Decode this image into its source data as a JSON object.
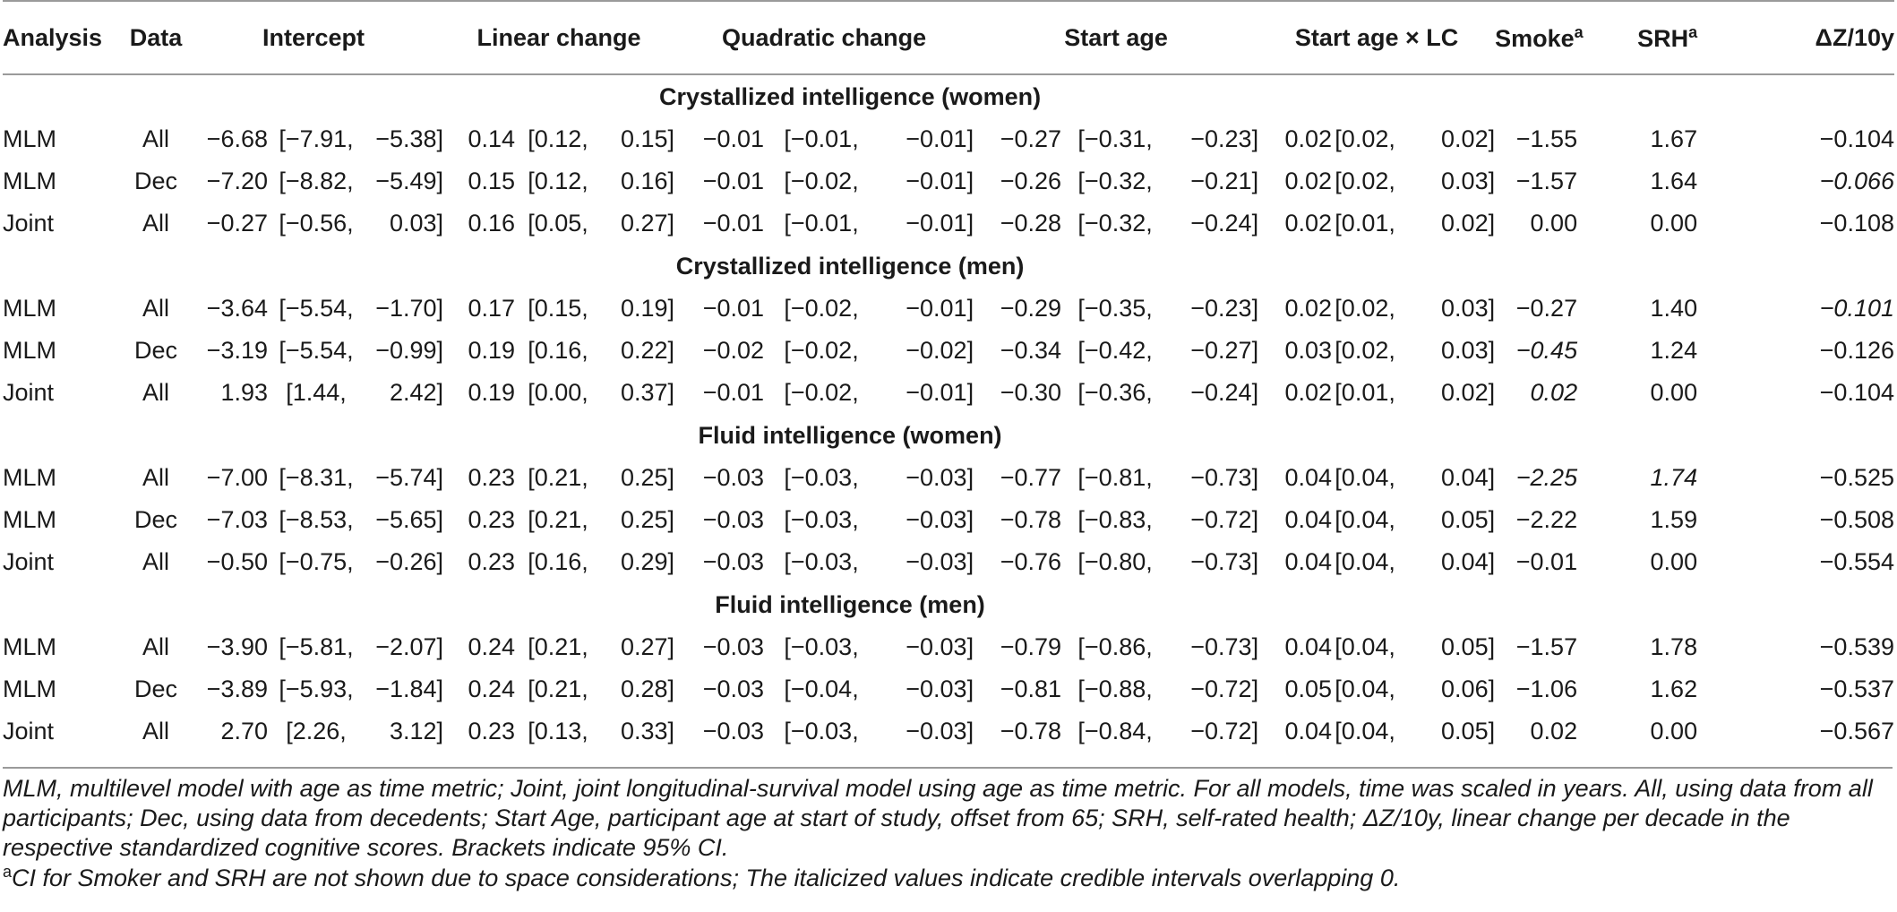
{
  "headers": {
    "analysis": "Analysis",
    "data": "Data",
    "intercept": "Intercept",
    "linear": "Linear change",
    "quadratic": "Quadratic change",
    "start_age": "Start age",
    "start_age_lc": "Start age × LC",
    "smoke": "Smoke",
    "srh": "SRH",
    "sup_a": "a",
    "dz": "ΔZ/10y"
  },
  "sections": [
    {
      "title": "Crystallized intelligence (women)",
      "rows": [
        {
          "analysis": "MLM",
          "data": "All",
          "int": [
            "−6.68",
            "[−7.91,",
            "−5.38]"
          ],
          "lin": [
            "0.14",
            "[0.12,",
            "0.15]"
          ],
          "quad": [
            "−0.01",
            "[−0.01,",
            "−0.01]"
          ],
          "age": [
            "−0.27",
            "[−0.31,",
            "−0.23]"
          ],
          "agelc": [
            "0.02",
            "[0.02,",
            "0.02]"
          ],
          "smoke": "−1.55",
          "srh": "1.67",
          "dz": "−0.104"
        },
        {
          "analysis": "MLM",
          "data": "Dec",
          "int": [
            "−7.20",
            "[−8.82,",
            "−5.49]"
          ],
          "lin": [
            "0.15",
            "[0.12,",
            "0.16]"
          ],
          "quad": [
            "−0.01",
            "[−0.02,",
            "−0.01]"
          ],
          "age": [
            "−0.26",
            "[−0.32,",
            "−0.21]"
          ],
          "agelc": [
            "0.02",
            "[0.02,",
            "0.03]"
          ],
          "smoke": "−1.57",
          "srh": "1.64",
          "dz": "−0.066"
        },
        {
          "analysis": "Joint",
          "data": "All",
          "int": [
            "−0.27",
            "[−0.56,",
            "0.03]"
          ],
          "lin": [
            "0.16",
            "[0.05,",
            "0.27]"
          ],
          "quad": [
            "−0.01",
            "[−0.01,",
            "−0.01]"
          ],
          "age": [
            "−0.28",
            "[−0.32,",
            "−0.24]"
          ],
          "agelc": [
            "0.02",
            "[0.01,",
            "0.02]"
          ],
          "smoke": "0.00",
          "srh": "0.00",
          "dz": "−0.108"
        }
      ]
    },
    {
      "title": "Crystallized intelligence (men)",
      "rows": [
        {
          "analysis": "MLM",
          "data": "All",
          "int": [
            "−3.64",
            "[−5.54,",
            "−1.70]"
          ],
          "lin": [
            "0.17",
            "[0.15,",
            "0.19]"
          ],
          "quad": [
            "−0.01",
            "[−0.02,",
            "−0.01]"
          ],
          "age": [
            "−0.29",
            "[−0.35,",
            "−0.23]"
          ],
          "agelc": [
            "0.02",
            "[0.02,",
            "0.03]"
          ],
          "smoke": "−0.27",
          "srh": "1.40",
          "dz": "−0.101"
        },
        {
          "analysis": "MLM",
          "data": "Dec",
          "int": [
            "−3.19",
            "[−5.54,",
            "−0.99]"
          ],
          "lin": [
            "0.19",
            "[0.16,",
            "0.22]"
          ],
          "quad": [
            "−0.02",
            "[−0.02,",
            "−0.02]"
          ],
          "age": [
            "−0.34",
            "[−0.42,",
            "−0.27]"
          ],
          "agelc": [
            "0.03",
            "[0.02,",
            "0.03]"
          ],
          "smoke": "−0.45",
          "srh": "1.24",
          "dz": "−0.126"
        },
        {
          "analysis": "Joint",
          "data": "All",
          "int": [
            "1.93",
            "[1.44,",
            "2.42]"
          ],
          "lin": [
            "0.19",
            "[0.00,",
            "0.37]"
          ],
          "quad": [
            "−0.01",
            "[−0.02,",
            "−0.01]"
          ],
          "age": [
            "−0.30",
            "[−0.36,",
            "−0.24]"
          ],
          "agelc": [
            "0.02",
            "[0.01,",
            "0.02]"
          ],
          "smoke": "0.02",
          "srh": "0.00",
          "dz": "−0.104"
        }
      ]
    },
    {
      "title": "Fluid intelligence (women)",
      "rows": [
        {
          "analysis": "MLM",
          "data": "All",
          "int": [
            "−7.00",
            "[−8.31,",
            "−5.74]"
          ],
          "lin": [
            "0.23",
            "[0.21,",
            "0.25]"
          ],
          "quad": [
            "−0.03",
            "[−0.03,",
            "−0.03]"
          ],
          "age": [
            "−0.77",
            "[−0.81,",
            "−0.73]"
          ],
          "agelc": [
            "0.04",
            "[0.04,",
            "0.04]"
          ],
          "smoke": "−2.25",
          "srh": "1.74",
          "dz": "−0.525"
        },
        {
          "analysis": "MLM",
          "data": "Dec",
          "int": [
            "−7.03",
            "[−8.53,",
            "−5.65]"
          ],
          "lin": [
            "0.23",
            "[0.21,",
            "0.25]"
          ],
          "quad": [
            "−0.03",
            "[−0.03,",
            "−0.03]"
          ],
          "age": [
            "−0.78",
            "[−0.83,",
            "−0.72]"
          ],
          "agelc": [
            "0.04",
            "[0.04,",
            "0.05]"
          ],
          "smoke": "−2.22",
          "srh": "1.59",
          "dz": "−0.508"
        },
        {
          "analysis": "Joint",
          "data": "All",
          "int": [
            "−0.50",
            "[−0.75,",
            "−0.26]"
          ],
          "lin": [
            "0.23",
            "[0.16,",
            "0.29]"
          ],
          "quad": [
            "−0.03",
            "[−0.03,",
            "−0.03]"
          ],
          "age": [
            "−0.76",
            "[−0.80,",
            "−0.73]"
          ],
          "agelc": [
            "0.04",
            "[0.04,",
            "0.04]"
          ],
          "smoke": "−0.01",
          "srh": "0.00",
          "dz": "−0.554"
        }
      ]
    },
    {
      "title": "Fluid intelligence (men)",
      "rows": [
        {
          "analysis": "MLM",
          "data": "All",
          "int": [
            "−3.90",
            "[−5.81,",
            "−2.07]"
          ],
          "lin": [
            "0.24",
            "[0.21,",
            "0.27]"
          ],
          "quad": [
            "−0.03",
            "[−0.03,",
            "−0.03]"
          ],
          "age": [
            "−0.79",
            "[−0.86,",
            "−0.73]"
          ],
          "agelc": [
            "0.04",
            "[0.04,",
            "0.05]"
          ],
          "smoke": "−1.57",
          "srh": "1.78",
          "dz": "−0.539"
        },
        {
          "analysis": "MLM",
          "data": "Dec",
          "int": [
            "−3.89",
            "[−5.93,",
            "−1.84]"
          ],
          "lin": [
            "0.24",
            "[0.21,",
            "0.28]"
          ],
          "quad": [
            "−0.03",
            "[−0.04,",
            "−0.03]"
          ],
          "age": [
            "−0.81",
            "[−0.88,",
            "−0.72]"
          ],
          "agelc": [
            "0.05",
            "[0.04,",
            "0.06]"
          ],
          "smoke": "−1.06",
          "srh": "1.62",
          "dz": "−0.537"
        },
        {
          "analysis": "Joint",
          "data": "All",
          "int": [
            "2.70",
            "[2.26,",
            "3.12]"
          ],
          "lin": [
            "0.23",
            "[0.13,",
            "0.33]"
          ],
          "quad": [
            "−0.03",
            "[−0.03,",
            "−0.03]"
          ],
          "age": [
            "−0.78",
            "[−0.84,",
            "−0.72]"
          ],
          "agelc": [
            "0.04",
            "[0.04,",
            "0.05]"
          ],
          "smoke": "0.02",
          "srh": "0.00",
          "dz": "−0.567"
        }
      ]
    }
  ],
  "italic_cells": [
    [
      false,
      false,
      false
    ],
    [
      false,
      false,
      true
    ],
    [
      false,
      false,
      false
    ],
    [
      false,
      false,
      true
    ],
    [
      true,
      false,
      false
    ],
    [
      true,
      false,
      false
    ],
    [
      true,
      true,
      false
    ]
  ],
  "footnote": {
    "main": "MLM, multilevel model with age as time metric; Joint, joint longitudinal-survival model using age as time metric. For all models, time was scaled in years. All, using data from all participants; Dec, using data from decedents; Start Age, participant age at start of study, offset from 65; SRH, self-rated health; ΔZ/10y, linear change per decade in the respective standardized cognitive scores. Brackets indicate 95% CI.",
    "marker": "a",
    "note": "CI for Smoker and SRH are not shown due to space considerations; The italicized values indicate credible intervals overlapping 0."
  }
}
